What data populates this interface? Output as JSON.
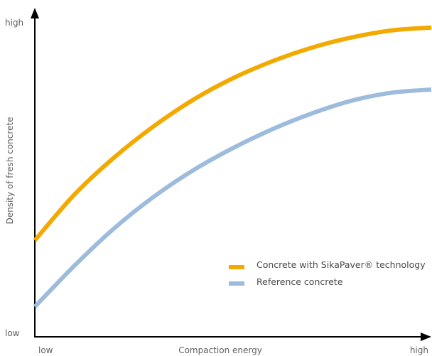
{
  "chart_data": {
    "type": "line",
    "title": "",
    "xlabel": "Compaction energy",
    "ylabel": "Density of fresh concrete",
    "x_ticks": {
      "low": "low",
      "high": "high"
    },
    "y_ticks": {
      "low": "low",
      "high": "high"
    },
    "xlim": [
      0,
      1
    ],
    "ylim": [
      0,
      1
    ],
    "grid": false,
    "legend_position": "bottom-right",
    "series": [
      {
        "name": "Concrete with SikaPaver® technology",
        "color": "#F2A900",
        "x": [
          0.0,
          0.1,
          0.2,
          0.3,
          0.4,
          0.5,
          0.6,
          0.7,
          0.8,
          0.9,
          1.0
        ],
        "y": [
          0.305,
          0.45,
          0.567,
          0.666,
          0.75,
          0.818,
          0.872,
          0.915,
          0.947,
          0.969,
          0.978
        ]
      },
      {
        "name": "Reference concrete",
        "color": "#9DBCDC",
        "x": [
          0.0,
          0.1,
          0.2,
          0.3,
          0.4,
          0.5,
          0.6,
          0.7,
          0.8,
          0.9,
          1.0
        ],
        "y": [
          0.095,
          0.225,
          0.343,
          0.443,
          0.527,
          0.597,
          0.657,
          0.707,
          0.747,
          0.772,
          0.782
        ]
      }
    ]
  }
}
